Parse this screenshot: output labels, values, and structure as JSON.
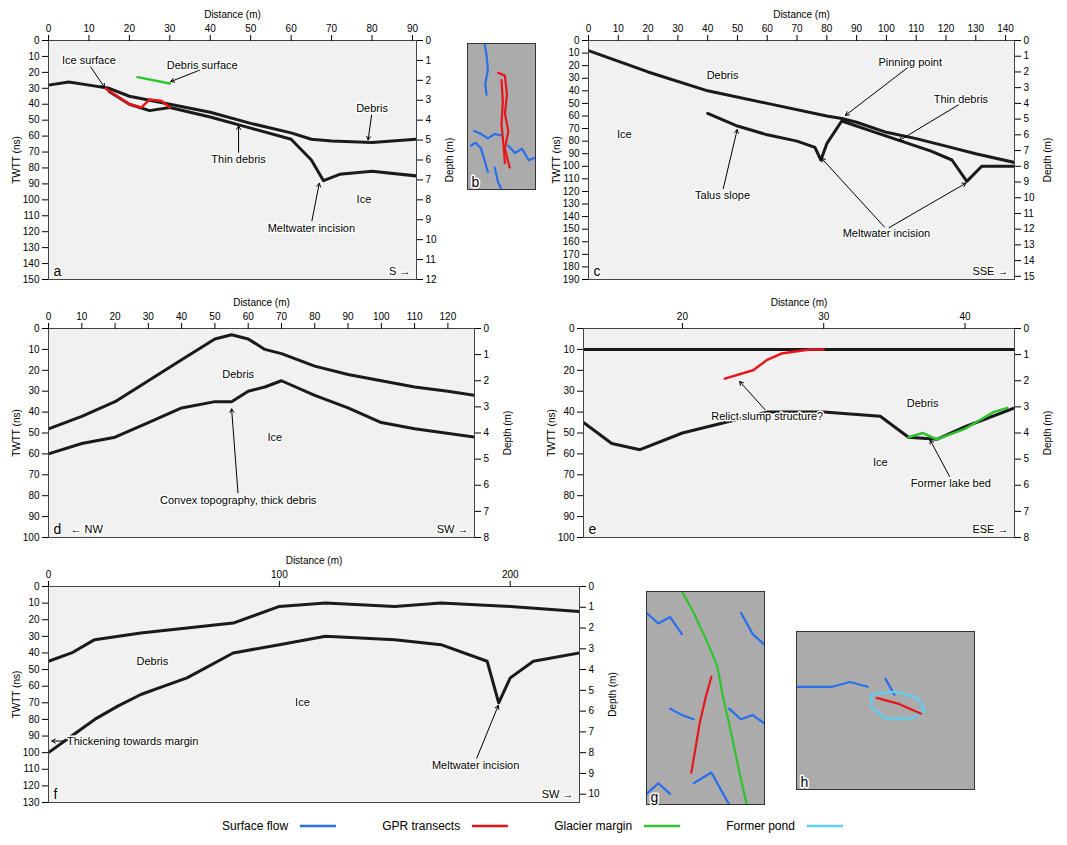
{
  "chart_data": [
    {
      "type": "radargram",
      "panel": "a",
      "x_label": "Distance (m)",
      "y_label": "TWTT (ns)",
      "y2_label": "Depth (m)",
      "xlim": [
        0,
        91
      ],
      "xticks": [
        0,
        10,
        20,
        30,
        40,
        50,
        60,
        70,
        80,
        90
      ],
      "ylim": [
        0,
        150
      ],
      "yticks": [
        0,
        10,
        20,
        30,
        40,
        50,
        60,
        70,
        80,
        90,
        100,
        110,
        120,
        130,
        140,
        150
      ],
      "y2lim": [
        0,
        12
      ],
      "y2ticks": [
        0,
        1,
        2,
        3,
        4,
        5,
        6,
        7,
        8,
        9,
        10,
        11,
        12
      ],
      "reflectors": [
        {
          "x": [
            0,
            5,
            10,
            15,
            20,
            30,
            40,
            50,
            60,
            65,
            70,
            80,
            91
          ],
          "y": [
            28,
            26,
            28,
            30,
            35,
            40,
            45,
            52,
            58,
            62,
            63,
            64,
            62
          ]
        },
        {
          "x": [
            15,
            20,
            25,
            30,
            40,
            50,
            60,
            65,
            68,
            72,
            80,
            91
          ],
          "y": [
            32,
            40,
            44,
            42,
            48,
            55,
            62,
            75,
            88,
            84,
            82,
            85
          ]
        }
      ],
      "traces": [
        {
          "color": "#e8161b",
          "x": [
            14,
            17,
            20,
            23,
            25,
            28,
            30
          ],
          "y": [
            30,
            35,
            40,
            42,
            37,
            38,
            42
          ]
        },
        {
          "color": "#2fc42f",
          "x": [
            22,
            30
          ],
          "y": [
            23,
            27
          ]
        }
      ],
      "annotations": [
        {
          "text": "Ice surface",
          "x": 10,
          "y": 15,
          "to": [
            [
              14,
              30
            ]
          ]
        },
        {
          "text": "Debris surface",
          "x": 38,
          "y": 18,
          "to": [
            [
              30,
              26
            ]
          ]
        },
        {
          "text": "Thin debris",
          "x": 47,
          "y": 72,
          "to": [
            [
              47,
              53
            ]
          ]
        },
        {
          "text": "Debris",
          "x": 80,
          "y": 45,
          "to": [
            [
              79,
              63
            ]
          ]
        },
        {
          "text": "Ice",
          "x": 78,
          "y": 100
        },
        {
          "text": "Meltwater incision",
          "x": 65,
          "y": 115,
          "to": [
            [
              67,
              89
            ]
          ]
        }
      ],
      "direction_right": "S →"
    },
    {
      "type": "map",
      "panel": "b",
      "xlim": [
        0,
        100
      ],
      "ylim": [
        0,
        100
      ],
      "lines": [
        {
          "color": "#2a6ef0",
          "x": [
            25,
            28,
            30,
            26,
            28
          ],
          "y": [
            0,
            8,
            18,
            28,
            35
          ]
        },
        {
          "color": "#2a6ef0",
          "x": [
            10,
            20,
            30,
            40,
            50
          ],
          "y": [
            60,
            62,
            65,
            62,
            63
          ]
        },
        {
          "color": "#2a6ef0",
          "x": [
            5,
            12,
            20,
            25,
            30
          ],
          "y": [
            70,
            68,
            72,
            80,
            88
          ]
        },
        {
          "color": "#2a6ef0",
          "x": [
            60,
            70,
            80,
            90,
            100
          ],
          "y": [
            70,
            75,
            72,
            80,
            78
          ]
        },
        {
          "color": "#2a6ef0",
          "x": [
            40,
            45,
            50
          ],
          "y": [
            85,
            95,
            100
          ]
        },
        {
          "color": "#e8161b",
          "x": [
            45,
            55,
            58,
            55,
            60,
            55,
            62
          ],
          "y": [
            20,
            22,
            35,
            48,
            60,
            72,
            85
          ]
        },
        {
          "color": "#e8161b",
          "x": [
            50,
            52,
            50,
            53,
            55
          ],
          "y": [
            25,
            40,
            55,
            70,
            82
          ]
        }
      ]
    },
    {
      "type": "radargram",
      "panel": "c",
      "x_label": "Distance (m)",
      "y_label": "TWTT (ns)",
      "y2_label": "Depth (m)",
      "xlim": [
        0,
        143
      ],
      "xticks": [
        0,
        10,
        20,
        30,
        40,
        50,
        60,
        70,
        80,
        90,
        100,
        110,
        120,
        130,
        140
      ],
      "ylim": [
        0,
        190
      ],
      "yticks": [
        0,
        10,
        20,
        30,
        40,
        50,
        60,
        70,
        80,
        90,
        100,
        110,
        120,
        130,
        140,
        150,
        160,
        170,
        180,
        190
      ],
      "y2lim": [
        0,
        15.2
      ],
      "y2ticks": [
        0,
        1,
        2,
        3,
        4,
        5,
        6,
        7,
        8,
        9,
        10,
        11,
        12,
        13,
        14,
        15
      ],
      "reflectors": [
        {
          "x": [
            0,
            20,
            40,
            60,
            80,
            85,
            90,
            100,
            110,
            120,
            130,
            143
          ],
          "y": [
            8,
            25,
            40,
            50,
            60,
            62,
            65,
            73,
            78,
            84,
            90,
            97
          ]
        },
        {
          "x": [
            40,
            50,
            60,
            70,
            76,
            78,
            80,
            85,
            95,
            105,
            115,
            122,
            127,
            132,
            143
          ],
          "y": [
            58,
            68,
            75,
            80,
            85,
            95,
            82,
            64,
            72,
            80,
            88,
            95,
            112,
            100,
            100
          ]
        }
      ],
      "traces": [],
      "annotations": [
        {
          "text": "Debris",
          "x": 45,
          "y": 28
        },
        {
          "text": "Ice",
          "x": 12,
          "y": 75
        },
        {
          "text": "Pinning point",
          "x": 108,
          "y": 20,
          "to": [
            [
              86,
              60
            ]
          ]
        },
        {
          "text": "Thin debris",
          "x": 125,
          "y": 50,
          "to": [
            [
              104,
              80
            ]
          ]
        },
        {
          "text": "Talus slope",
          "x": 45,
          "y": 120,
          "to": [
            [
              50,
              70
            ]
          ]
        },
        {
          "text": "Meltwater incision",
          "x": 100,
          "y": 150,
          "to": [
            [
              78,
              93
            ],
            [
              127,
              113
            ]
          ]
        }
      ],
      "direction_right": "SSE →"
    },
    {
      "type": "radargram",
      "panel": "d",
      "x_label": "Distance (m)",
      "y_label": "TWTT (ns)",
      "y2_label": "Depth (m)",
      "xlim": [
        0,
        128
      ],
      "xticks": [
        0,
        10,
        20,
        30,
        40,
        50,
        60,
        70,
        80,
        90,
        100,
        110,
        120
      ],
      "ylim": [
        0,
        100
      ],
      "yticks": [
        0,
        10,
        20,
        30,
        40,
        50,
        60,
        70,
        80,
        90,
        100
      ],
      "y2lim": [
        0,
        8
      ],
      "y2ticks": [
        0,
        1,
        2,
        3,
        4,
        5,
        6,
        7,
        8
      ],
      "reflectors": [
        {
          "x": [
            0,
            10,
            20,
            30,
            40,
            50,
            55,
            60,
            65,
            70,
            80,
            90,
            100,
            110,
            120,
            128
          ],
          "y": [
            48,
            42,
            35,
            25,
            15,
            5,
            3,
            5,
            10,
            12,
            18,
            22,
            25,
            28,
            30,
            32
          ]
        },
        {
          "x": [
            0,
            10,
            20,
            30,
            40,
            50,
            55,
            60,
            65,
            70,
            80,
            90,
            100,
            110,
            128
          ],
          "y": [
            60,
            55,
            52,
            45,
            38,
            35,
            35,
            30,
            28,
            25,
            32,
            38,
            45,
            48,
            52
          ]
        }
      ],
      "traces": [],
      "annotations": [
        {
          "text": "Debris",
          "x": 57,
          "y": 22
        },
        {
          "text": "Ice",
          "x": 68,
          "y": 52
        },
        {
          "text": "Convex topography, thick debris",
          "x": 57,
          "y": 80,
          "to": [
            [
              55,
              38
            ]
          ]
        }
      ],
      "direction_left": "← NW",
      "direction_right": "SW →"
    },
    {
      "type": "radargram",
      "panel": "e",
      "x_label": "Distance (m)",
      "y_label": "TWTT (ns)",
      "y2_label": "Depth (m)",
      "xlim": [
        13,
        43.5
      ],
      "xticks": [
        20,
        30,
        40
      ],
      "ylim": [
        0,
        100
      ],
      "yticks": [
        0,
        10,
        20,
        30,
        40,
        50,
        60,
        70,
        80,
        90,
        100
      ],
      "y2lim": [
        0,
        8
      ],
      "y2ticks": [
        0,
        1,
        2,
        3,
        4,
        5,
        6,
        7,
        8
      ],
      "reflectors": [
        {
          "x": [
            13,
            20,
            30,
            43.5
          ],
          "y": [
            10,
            10,
            10,
            10
          ]
        },
        {
          "x": [
            13,
            15,
            17,
            20,
            23,
            26,
            30,
            34,
            36,
            38,
            40,
            43.5
          ],
          "y": [
            45,
            55,
            58,
            50,
            45,
            40,
            40,
            42,
            52,
            53,
            47,
            38
          ]
        }
      ],
      "traces": [
        {
          "color": "#e8161b",
          "x": [
            23,
            25,
            26,
            27,
            29,
            30
          ],
          "y": [
            24,
            20,
            15,
            12,
            10,
            10
          ]
        },
        {
          "color": "#2fc42f",
          "x": [
            36,
            37,
            38,
            40,
            41,
            42,
            43
          ],
          "y": [
            52,
            50,
            53,
            48,
            44,
            40,
            38
          ]
        }
      ],
      "annotations": [
        {
          "text": "Relict slump structure?",
          "x": 26,
          "y": 40,
          "to": [
            [
              24,
              25
            ]
          ]
        },
        {
          "text": "Debris",
          "x": 37,
          "y": 36
        },
        {
          "text": "Ice",
          "x": 34,
          "y": 64
        },
        {
          "text": "Former lake bed",
          "x": 39,
          "y": 72,
          "to": [
            [
              37.5,
              53
            ]
          ]
        }
      ],
      "direction_right": "ESE →"
    },
    {
      "type": "radargram",
      "panel": "f",
      "x_label": "Distance (m)",
      "y_label": "TWTT (ns)",
      "y2_label": "Depth (m)",
      "xlim": [
        0,
        230
      ],
      "xticks": [
        0,
        100,
        200
      ],
      "ylim": [
        0,
        130
      ],
      "yticks": [
        0,
        10,
        20,
        30,
        40,
        50,
        60,
        70,
        80,
        90,
        100,
        110,
        120,
        130
      ],
      "y2lim": [
        0,
        10.4
      ],
      "y2ticks": [
        0,
        1,
        2,
        3,
        4,
        5,
        6,
        7,
        8,
        9,
        10
      ],
      "reflectors": [
        {
          "x": [
            0,
            10,
            20,
            40,
            60,
            80,
            100,
            120,
            150,
            170,
            200,
            230
          ],
          "y": [
            45,
            40,
            32,
            28,
            25,
            22,
            12,
            10,
            12,
            10,
            12,
            15
          ]
        },
        {
          "x": [
            0,
            10,
            20,
            30,
            40,
            50,
            60,
            80,
            100,
            120,
            150,
            170,
            190,
            195,
            200,
            210,
            230
          ],
          "y": [
            100,
            90,
            80,
            72,
            65,
            60,
            55,
            40,
            35,
            30,
            32,
            35,
            45,
            70,
            55,
            45,
            40
          ]
        }
      ],
      "traces": [],
      "annotations": [
        {
          "text": "Debris",
          "x": 45,
          "y": 45
        },
        {
          "text": "Ice",
          "x": 110,
          "y": 70
        },
        {
          "text": "Thickening towards margin",
          "x": 8,
          "y": 93,
          "to": [
            [
              1,
              93
            ]
          ]
        },
        {
          "text": "Meltwater incision",
          "x": 185,
          "y": 105,
          "to": [
            [
              195,
              71
            ]
          ]
        }
      ],
      "direction_right": "SW →"
    },
    {
      "type": "map",
      "panel": "g",
      "xlim": [
        0,
        100
      ],
      "ylim": [
        0,
        100
      ],
      "lines": [
        {
          "color": "#2a6ef0",
          "x": [
            0,
            10,
            20,
            30
          ],
          "y": [
            10,
            15,
            12,
            20
          ]
        },
        {
          "color": "#2a6ef0",
          "x": [
            80,
            90,
            100
          ],
          "y": [
            10,
            20,
            25
          ]
        },
        {
          "color": "#2a6ef0",
          "x": [
            20,
            30,
            40
          ],
          "y": [
            55,
            58,
            60
          ]
        },
        {
          "color": "#2a6ef0",
          "x": [
            70,
            80,
            90,
            100
          ],
          "y": [
            55,
            60,
            58,
            62
          ]
        },
        {
          "color": "#2a6ef0",
          "x": [
            40,
            55,
            65,
            70
          ],
          "y": [
            90,
            85,
            95,
            100
          ]
        },
        {
          "color": "#2a6ef0",
          "x": [
            0,
            10,
            20
          ],
          "y": [
            95,
            90,
            95
          ]
        },
        {
          "color": "#2fc42f",
          "x": [
            30,
            40,
            50,
            60,
            65,
            70,
            75,
            80,
            85
          ],
          "y": [
            0,
            10,
            22,
            35,
            50,
            62,
            75,
            88,
            100
          ]
        },
        {
          "color": "#e8161b",
          "x": [
            55,
            50,
            45,
            42,
            38
          ],
          "y": [
            40,
            50,
            62,
            72,
            85
          ]
        }
      ]
    },
    {
      "type": "map",
      "panel": "h",
      "xlim": [
        0,
        100
      ],
      "ylim": [
        0,
        100
      ],
      "lines": [
        {
          "color": "#2a6ef0",
          "x": [
            0,
            20,
            30,
            40
          ],
          "y": [
            35,
            35,
            32,
            35
          ]
        },
        {
          "color": "#2a6ef0",
          "x": [
            50,
            55
          ],
          "y": [
            30,
            40
          ]
        },
        {
          "color": "#5fd0f5",
          "x": [
            42,
            55,
            68,
            72,
            65,
            50,
            42,
            42
          ],
          "y": [
            40,
            38,
            42,
            50,
            55,
            55,
            48,
            40
          ]
        },
        {
          "color": "#e8161b",
          "x": [
            45,
            58,
            70
          ],
          "y": [
            42,
            46,
            52
          ]
        }
      ]
    },
    {
      "type": "key",
      "entries": [
        {
          "label": "Surface flow",
          "color": "#2a6ef0"
        },
        {
          "label": "GPR transects",
          "color": "#e8161b"
        },
        {
          "label": "Glacier margin",
          "color": "#2fc42f"
        },
        {
          "label": "Former pond",
          "color": "#5fd0f5"
        }
      ]
    }
  ]
}
